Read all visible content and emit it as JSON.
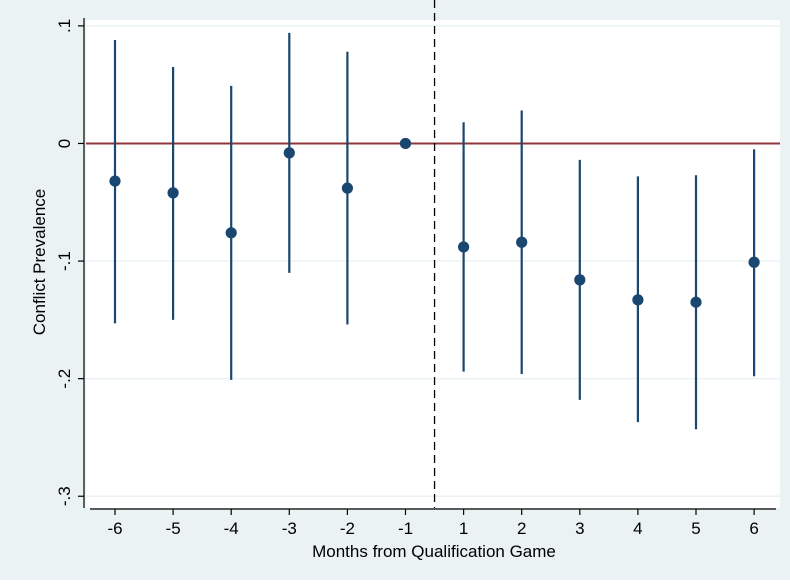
{
  "chart_data": {
    "type": "scatter",
    "subtype": "coefficient plot with confidence intervals",
    "xlabel": "Months from Qualification Game",
    "ylabel": "Conflict Prevalence",
    "x_ticks": [
      "-6",
      "-5",
      "-4",
      "-3",
      "-2",
      "-1",
      "1",
      "2",
      "3",
      "4",
      "5",
      "6"
    ],
    "y_ticks": [
      {
        "value": 0.1,
        "label": ".1"
      },
      {
        "value": 0,
        "label": "0"
      },
      {
        "value": -0.1,
        "label": "-.1"
      },
      {
        "value": -0.2,
        "label": "-.2"
      },
      {
        "value": -0.3,
        "label": "-.3"
      }
    ],
    "ylim": [
      -0.31,
      0.105
    ],
    "grid": "horizontal",
    "reference_line_y": 0,
    "event_line_between": [
      "-1",
      "1"
    ],
    "points": [
      {
        "x": "-6",
        "estimate": -0.032,
        "ci_low": -0.153,
        "ci_high": 0.088
      },
      {
        "x": "-5",
        "estimate": -0.042,
        "ci_low": -0.15,
        "ci_high": 0.065
      },
      {
        "x": "-4",
        "estimate": -0.076,
        "ci_low": -0.201,
        "ci_high": 0.049
      },
      {
        "x": "-3",
        "estimate": -0.008,
        "ci_low": -0.11,
        "ci_high": 0.094
      },
      {
        "x": "-2",
        "estimate": -0.038,
        "ci_low": -0.154,
        "ci_high": 0.078
      },
      {
        "x": "-1",
        "estimate": 0.0,
        "ci_low": null,
        "ci_high": null
      },
      {
        "x": "1",
        "estimate": -0.088,
        "ci_low": -0.194,
        "ci_high": 0.018
      },
      {
        "x": "2",
        "estimate": -0.084,
        "ci_low": -0.196,
        "ci_high": 0.028
      },
      {
        "x": "3",
        "estimate": -0.116,
        "ci_low": -0.218,
        "ci_high": -0.014
      },
      {
        "x": "4",
        "estimate": -0.133,
        "ci_low": -0.237,
        "ci_high": -0.028
      },
      {
        "x": "5",
        "estimate": -0.135,
        "ci_low": -0.243,
        "ci_high": -0.027
      },
      {
        "x": "6",
        "estimate": -0.101,
        "ci_low": -0.198,
        "ci_high": -0.005
      }
    ],
    "colors": {
      "background": "#eaf2f3",
      "plot_area": "#ffffff",
      "estimate": "#1a476f",
      "interval": "#1a476f",
      "reference_line": "#90353b",
      "grid": "#eaf2f3",
      "event_line": "#000000"
    }
  }
}
